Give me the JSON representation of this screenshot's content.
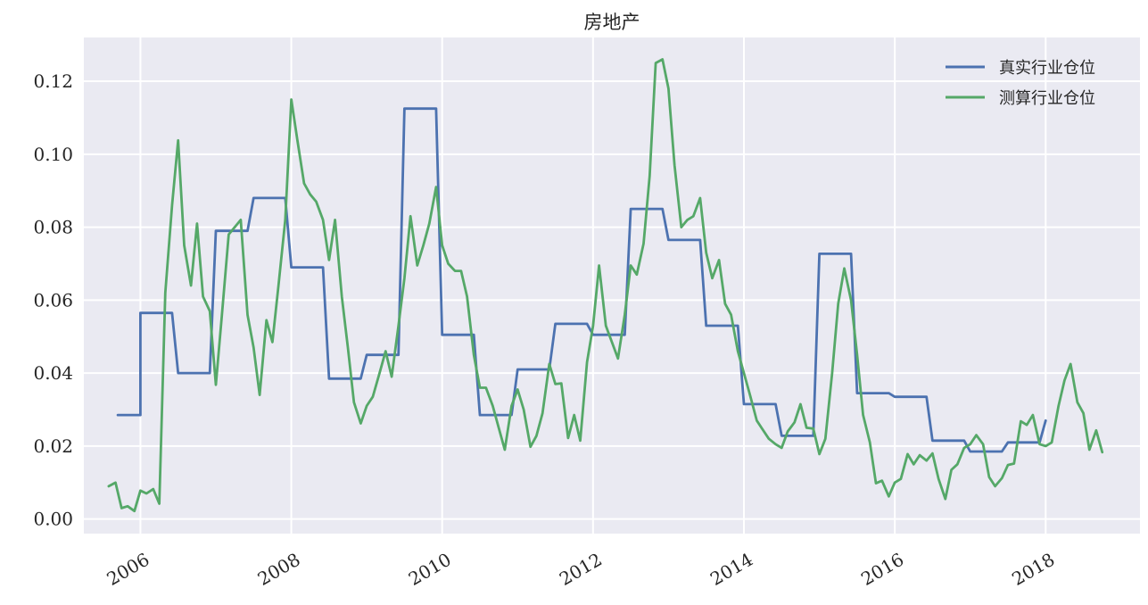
{
  "chart_data": {
    "type": "line",
    "title": "房地产",
    "xlabel": "",
    "ylabel": "",
    "xlim": [
      2005.25,
      2019.25
    ],
    "ylim": [
      -0.004,
      0.132
    ],
    "x_ticks": [
      2006,
      2008,
      2010,
      2012,
      2014,
      2016,
      2018
    ],
    "x_tick_labels": [
      "2006",
      "2008",
      "2010",
      "2012",
      "2014",
      "2016",
      "2018"
    ],
    "y_ticks": [
      0.0,
      0.02,
      0.04,
      0.06,
      0.08,
      0.1,
      0.12
    ],
    "y_tick_labels": [
      "0.00",
      "0.02",
      "0.04",
      "0.06",
      "0.08",
      "0.10",
      "0.12"
    ],
    "grid": true,
    "legend": "top-right",
    "colors": {
      "background": "#eaeaf2",
      "grid": "#ffffff",
      "real": "#4c72b0",
      "est": "#55a868"
    },
    "series": [
      {
        "name": "真实行业仓位",
        "color": "#4c72b0",
        "points": [
          [
            2005.7,
            0.0285
          ],
          [
            2006.0,
            0.0285
          ],
          [
            2006.0,
            0.0565
          ],
          [
            2006.42,
            0.0565
          ],
          [
            2006.5,
            0.04
          ],
          [
            2006.92,
            0.04
          ],
          [
            2007.0,
            0.079
          ],
          [
            2007.42,
            0.079
          ],
          [
            2007.5,
            0.088
          ],
          [
            2007.92,
            0.088
          ],
          [
            2008.0,
            0.069
          ],
          [
            2008.42,
            0.069
          ],
          [
            2008.5,
            0.0385
          ],
          [
            2008.92,
            0.0385
          ],
          [
            2009.0,
            0.045
          ],
          [
            2009.42,
            0.045
          ],
          [
            2009.5,
            0.1125
          ],
          [
            2009.92,
            0.1125
          ],
          [
            2010.0,
            0.0505
          ],
          [
            2010.42,
            0.0505
          ],
          [
            2010.5,
            0.0285
          ],
          [
            2010.92,
            0.0285
          ],
          [
            2011.0,
            0.041
          ],
          [
            2011.42,
            0.041
          ],
          [
            2011.5,
            0.0535
          ],
          [
            2011.92,
            0.0535
          ],
          [
            2012.0,
            0.0505
          ],
          [
            2012.42,
            0.0505
          ],
          [
            2012.5,
            0.085
          ],
          [
            2012.92,
            0.085
          ],
          [
            2013.0,
            0.0765
          ],
          [
            2013.42,
            0.0765
          ],
          [
            2013.5,
            0.053
          ],
          [
            2013.92,
            0.053
          ],
          [
            2014.0,
            0.0315
          ],
          [
            2014.42,
            0.0315
          ],
          [
            2014.5,
            0.0228
          ],
          [
            2014.92,
            0.0228
          ],
          [
            2015.0,
            0.0727
          ],
          [
            2015.42,
            0.0727
          ],
          [
            2015.5,
            0.0345
          ],
          [
            2015.92,
            0.0345
          ],
          [
            2016.0,
            0.0335
          ],
          [
            2016.42,
            0.0335
          ],
          [
            2016.5,
            0.0215
          ],
          [
            2016.92,
            0.0215
          ],
          [
            2017.0,
            0.0185
          ],
          [
            2017.42,
            0.0185
          ],
          [
            2017.5,
            0.021
          ],
          [
            2017.92,
            0.021
          ],
          [
            2018.0,
            0.027
          ]
        ]
      },
      {
        "name": "测算行业仓位",
        "color": "#55a868",
        "points": [
          [
            2005.58,
            0.009
          ],
          [
            2005.67,
            0.01
          ],
          [
            2005.75,
            0.003
          ],
          [
            2005.83,
            0.0035
          ],
          [
            2005.92,
            0.0022
          ],
          [
            2006.0,
            0.0078
          ],
          [
            2006.08,
            0.007
          ],
          [
            2006.17,
            0.0082
          ],
          [
            2006.25,
            0.0042
          ],
          [
            2006.33,
            0.062
          ],
          [
            2006.42,
            0.086
          ],
          [
            2006.5,
            0.1038
          ],
          [
            2006.58,
            0.075
          ],
          [
            2006.67,
            0.064
          ],
          [
            2006.75,
            0.081
          ],
          [
            2006.83,
            0.061
          ],
          [
            2006.92,
            0.057
          ],
          [
            2007.0,
            0.0368
          ],
          [
            2007.08,
            0.056
          ],
          [
            2007.17,
            0.078
          ],
          [
            2007.25,
            0.08
          ],
          [
            2007.33,
            0.082
          ],
          [
            2007.42,
            0.056
          ],
          [
            2007.5,
            0.047
          ],
          [
            2007.58,
            0.034
          ],
          [
            2007.67,
            0.0545
          ],
          [
            2007.75,
            0.0485
          ],
          [
            2007.83,
            0.064
          ],
          [
            2007.92,
            0.082
          ],
          [
            2008.0,
            0.115
          ],
          [
            2008.08,
            0.104
          ],
          [
            2008.17,
            0.092
          ],
          [
            2008.25,
            0.089
          ],
          [
            2008.33,
            0.087
          ],
          [
            2008.42,
            0.082
          ],
          [
            2008.5,
            0.071
          ],
          [
            2008.58,
            0.082
          ],
          [
            2008.67,
            0.061
          ],
          [
            2008.75,
            0.047
          ],
          [
            2008.83,
            0.032
          ],
          [
            2008.92,
            0.0262
          ],
          [
            2009.0,
            0.031
          ],
          [
            2009.08,
            0.0335
          ],
          [
            2009.17,
            0.04
          ],
          [
            2009.25,
            0.046
          ],
          [
            2009.33,
            0.039
          ],
          [
            2009.42,
            0.053
          ],
          [
            2009.5,
            0.066
          ],
          [
            2009.58,
            0.083
          ],
          [
            2009.67,
            0.0695
          ],
          [
            2009.75,
            0.075
          ],
          [
            2009.83,
            0.081
          ],
          [
            2009.92,
            0.091
          ],
          [
            2010.0,
            0.075
          ],
          [
            2010.08,
            0.07
          ],
          [
            2010.17,
            0.068
          ],
          [
            2010.25,
            0.068
          ],
          [
            2010.33,
            0.061
          ],
          [
            2010.42,
            0.045
          ],
          [
            2010.5,
            0.036
          ],
          [
            2010.58,
            0.036
          ],
          [
            2010.67,
            0.031
          ],
          [
            2010.75,
            0.025
          ],
          [
            2010.83,
            0.019
          ],
          [
            2010.92,
            0.031
          ],
          [
            2011.0,
            0.0355
          ],
          [
            2011.08,
            0.03
          ],
          [
            2011.17,
            0.0198
          ],
          [
            2011.25,
            0.0228
          ],
          [
            2011.33,
            0.029
          ],
          [
            2011.42,
            0.0425
          ],
          [
            2011.5,
            0.037
          ],
          [
            2011.58,
            0.0372
          ],
          [
            2011.67,
            0.0222
          ],
          [
            2011.75,
            0.0285
          ],
          [
            2011.83,
            0.0215
          ],
          [
            2011.92,
            0.043
          ],
          [
            2012.0,
            0.053
          ],
          [
            2012.08,
            0.0695
          ],
          [
            2012.17,
            0.053
          ],
          [
            2012.25,
            0.0485
          ],
          [
            2012.33,
            0.044
          ],
          [
            2012.42,
            0.056
          ],
          [
            2012.5,
            0.0695
          ],
          [
            2012.58,
            0.067
          ],
          [
            2012.67,
            0.0755
          ],
          [
            2012.75,
            0.094
          ],
          [
            2012.83,
            0.125
          ],
          [
            2012.92,
            0.126
          ],
          [
            2013.0,
            0.118
          ],
          [
            2013.08,
            0.097
          ],
          [
            2013.17,
            0.08
          ],
          [
            2013.25,
            0.082
          ],
          [
            2013.33,
            0.083
          ],
          [
            2013.42,
            0.088
          ],
          [
            2013.5,
            0.073
          ],
          [
            2013.58,
            0.066
          ],
          [
            2013.67,
            0.071
          ],
          [
            2013.75,
            0.059
          ],
          [
            2013.83,
            0.056
          ],
          [
            2013.92,
            0.046
          ],
          [
            2014.0,
            0.04
          ],
          [
            2014.08,
            0.034
          ],
          [
            2014.17,
            0.027
          ],
          [
            2014.25,
            0.0245
          ],
          [
            2014.33,
            0.022
          ],
          [
            2014.42,
            0.0205
          ],
          [
            2014.5,
            0.0195
          ],
          [
            2014.58,
            0.024
          ],
          [
            2014.67,
            0.0265
          ],
          [
            2014.75,
            0.0315
          ],
          [
            2014.83,
            0.025
          ],
          [
            2014.92,
            0.0248
          ],
          [
            2015.0,
            0.0178
          ],
          [
            2015.08,
            0.022
          ],
          [
            2015.17,
            0.04
          ],
          [
            2015.25,
            0.059
          ],
          [
            2015.33,
            0.0687
          ],
          [
            2015.42,
            0.06
          ],
          [
            2015.5,
            0.045
          ],
          [
            2015.58,
            0.0285
          ],
          [
            2015.67,
            0.021
          ],
          [
            2015.75,
            0.0098
          ],
          [
            2015.83,
            0.0105
          ],
          [
            2015.92,
            0.0062
          ],
          [
            2016.0,
            0.01
          ],
          [
            2016.08,
            0.011
          ],
          [
            2016.17,
            0.0178
          ],
          [
            2016.25,
            0.015
          ],
          [
            2016.33,
            0.0175
          ],
          [
            2016.42,
            0.016
          ],
          [
            2016.5,
            0.018
          ],
          [
            2016.58,
            0.011
          ],
          [
            2016.67,
            0.0055
          ],
          [
            2016.75,
            0.0135
          ],
          [
            2016.83,
            0.015
          ],
          [
            2016.92,
            0.0195
          ],
          [
            2017.0,
            0.0205
          ],
          [
            2017.08,
            0.023
          ],
          [
            2017.17,
            0.0205
          ],
          [
            2017.25,
            0.0115
          ],
          [
            2017.33,
            0.009
          ],
          [
            2017.42,
            0.0112
          ],
          [
            2017.5,
            0.0148
          ],
          [
            2017.58,
            0.0152
          ],
          [
            2017.67,
            0.0268
          ],
          [
            2017.75,
            0.0258
          ],
          [
            2017.83,
            0.0285
          ],
          [
            2017.92,
            0.0205
          ],
          [
            2018.0,
            0.02
          ],
          [
            2018.08,
            0.021
          ],
          [
            2018.17,
            0.031
          ],
          [
            2018.25,
            0.038
          ],
          [
            2018.33,
            0.0425
          ],
          [
            2018.42,
            0.032
          ],
          [
            2018.5,
            0.029
          ],
          [
            2018.58,
            0.019
          ],
          [
            2018.67,
            0.0243
          ],
          [
            2018.75,
            0.0183
          ]
        ]
      }
    ]
  }
}
